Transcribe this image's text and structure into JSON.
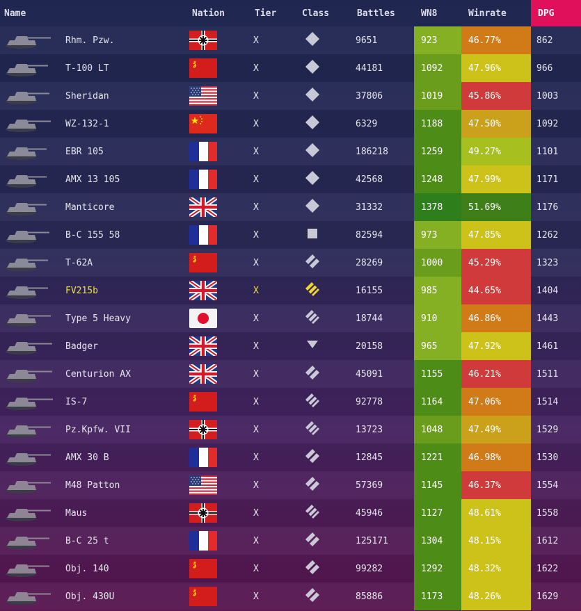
{
  "headers": {
    "name": "Name",
    "nation": "Nation",
    "tier": "Tier",
    "class": "Class",
    "battles": "Battles",
    "wn8": "WN8",
    "winrate": "Winrate",
    "dpg": "DPG"
  },
  "colors": {
    "dpg_header": "#e0105a",
    "highlight_text": "#f0e040"
  },
  "rows": [
    {
      "name": "Rhm. Pzw.",
      "nation": "germany",
      "tier": "X",
      "class": "light-tank",
      "battles": "9651",
      "wn8": "923",
      "wn8_color": "#85b023",
      "winrate": "46.77%",
      "winrate_color": "#d17b18",
      "dpg": "862"
    },
    {
      "name": "T-100 LT",
      "nation": "ussr",
      "tier": "X",
      "class": "light-tank",
      "battles": "44181",
      "wn8": "1092",
      "wn8_color": "#6a9d1c",
      "winrate": "47.96%",
      "winrate_color": "#cdc21a",
      "dpg": "966"
    },
    {
      "name": "Sheridan",
      "nation": "usa",
      "tier": "X",
      "class": "light-tank",
      "battles": "37806",
      "wn8": "1019",
      "wn8_color": "#6a9d1c",
      "winrate": "45.86%",
      "winrate_color": "#d13a3a",
      "dpg": "1003"
    },
    {
      "name": "WZ-132-1",
      "nation": "china",
      "tier": "X",
      "class": "light-tank",
      "battles": "6329",
      "wn8": "1188",
      "wn8_color": "#4e8c18",
      "winrate": "47.50%",
      "winrate_color": "#cba11c",
      "dpg": "1092"
    },
    {
      "name": "EBR 105",
      "nation": "france",
      "tier": "X",
      "class": "light-tank",
      "battles": "186218",
      "wn8": "1259",
      "wn8_color": "#4e8c18",
      "winrate": "49.27%",
      "winrate_color": "#a7bf1f",
      "dpg": "1101"
    },
    {
      "name": "AMX 13 105",
      "nation": "france",
      "tier": "X",
      "class": "light-tank",
      "battles": "42568",
      "wn8": "1248",
      "wn8_color": "#4e8c18",
      "winrate": "47.99%",
      "winrate_color": "#cdc21a",
      "dpg": "1171"
    },
    {
      "name": "Manticore",
      "nation": "uk",
      "tier": "X",
      "class": "light-tank",
      "battles": "31332",
      "wn8": "1378",
      "wn8_color": "#2e7f1c",
      "winrate": "51.69%",
      "winrate_color": "#3f7f1a",
      "dpg": "1176"
    },
    {
      "name": "B-C 155 58",
      "nation": "france",
      "tier": "X",
      "class": "spg",
      "battles": "82594",
      "wn8": "973",
      "wn8_color": "#85b023",
      "winrate": "47.85%",
      "winrate_color": "#cdc21a",
      "dpg": "1262"
    },
    {
      "name": "T-62A",
      "nation": "ussr",
      "tier": "X",
      "class": "medium-tank",
      "battles": "28269",
      "wn8": "1000",
      "wn8_color": "#6a9d1c",
      "winrate": "45.29%",
      "winrate_color": "#d13a3a",
      "dpg": "1323"
    },
    {
      "name": "FV215b",
      "nation": "uk",
      "tier": "X",
      "class": "heavy-tank-premium",
      "battles": "16155",
      "wn8": "985",
      "wn8_color": "#85b023",
      "winrate": "44.65%",
      "winrate_color": "#d13a3a",
      "dpg": "1404",
      "highlight": true
    },
    {
      "name": "Type 5 Heavy",
      "nation": "japan",
      "tier": "X",
      "class": "heavy-tank",
      "battles": "18744",
      "wn8": "910",
      "wn8_color": "#85b023",
      "winrate": "46.86%",
      "winrate_color": "#d17b18",
      "dpg": "1443"
    },
    {
      "name": "Badger",
      "nation": "uk",
      "tier": "X",
      "class": "tank-destroyer",
      "battles": "20158",
      "wn8": "965",
      "wn8_color": "#85b023",
      "winrate": "47.92%",
      "winrate_color": "#cdc21a",
      "dpg": "1461"
    },
    {
      "name": "Centurion AX",
      "nation": "uk",
      "tier": "X",
      "class": "medium-tank",
      "battles": "45091",
      "wn8": "1155",
      "wn8_color": "#4e8c18",
      "winrate": "46.21%",
      "winrate_color": "#d13a3a",
      "dpg": "1511"
    },
    {
      "name": "IS-7",
      "nation": "ussr",
      "tier": "X",
      "class": "heavy-tank",
      "battles": "92778",
      "wn8": "1164",
      "wn8_color": "#4e8c18",
      "winrate": "47.06%",
      "winrate_color": "#d17b18",
      "dpg": "1514"
    },
    {
      "name": "Pz.Kpfw. VII",
      "nation": "germany",
      "tier": "X",
      "class": "heavy-tank",
      "battles": "13723",
      "wn8": "1048",
      "wn8_color": "#6a9d1c",
      "winrate": "47.49%",
      "winrate_color": "#cba11c",
      "dpg": "1529"
    },
    {
      "name": "AMX 30 B",
      "nation": "france",
      "tier": "X",
      "class": "medium-tank",
      "battles": "12845",
      "wn8": "1221",
      "wn8_color": "#4e8c18",
      "winrate": "46.98%",
      "winrate_color": "#d17b18",
      "dpg": "1530"
    },
    {
      "name": "M48 Patton",
      "nation": "usa",
      "tier": "X",
      "class": "medium-tank",
      "battles": "57369",
      "wn8": "1145",
      "wn8_color": "#4e8c18",
      "winrate": "46.37%",
      "winrate_color": "#d13a3a",
      "dpg": "1554"
    },
    {
      "name": "Maus",
      "nation": "germany",
      "tier": "X",
      "class": "heavy-tank",
      "battles": "45946",
      "wn8": "1127",
      "wn8_color": "#4e8c18",
      "winrate": "48.61%",
      "winrate_color": "#cdc21a",
      "dpg": "1558"
    },
    {
      "name": "B-C 25 t",
      "nation": "france",
      "tier": "X",
      "class": "medium-tank",
      "battles": "125171",
      "wn8": "1304",
      "wn8_color": "#4e8c18",
      "winrate": "48.15%",
      "winrate_color": "#cdc21a",
      "dpg": "1612"
    },
    {
      "name": "Obj. 140",
      "nation": "ussr",
      "tier": "X",
      "class": "medium-tank",
      "battles": "99282",
      "wn8": "1292",
      "wn8_color": "#4e8c18",
      "winrate": "48.32%",
      "winrate_color": "#cdc21a",
      "dpg": "1622"
    },
    {
      "name": "Obj. 430U",
      "nation": "ussr",
      "tier": "X",
      "class": "medium-tank",
      "battles": "85886",
      "wn8": "1173",
      "wn8_color": "#4e8c18",
      "winrate": "48.26%",
      "winrate_color": "#cdc21a",
      "dpg": "1629"
    }
  ]
}
